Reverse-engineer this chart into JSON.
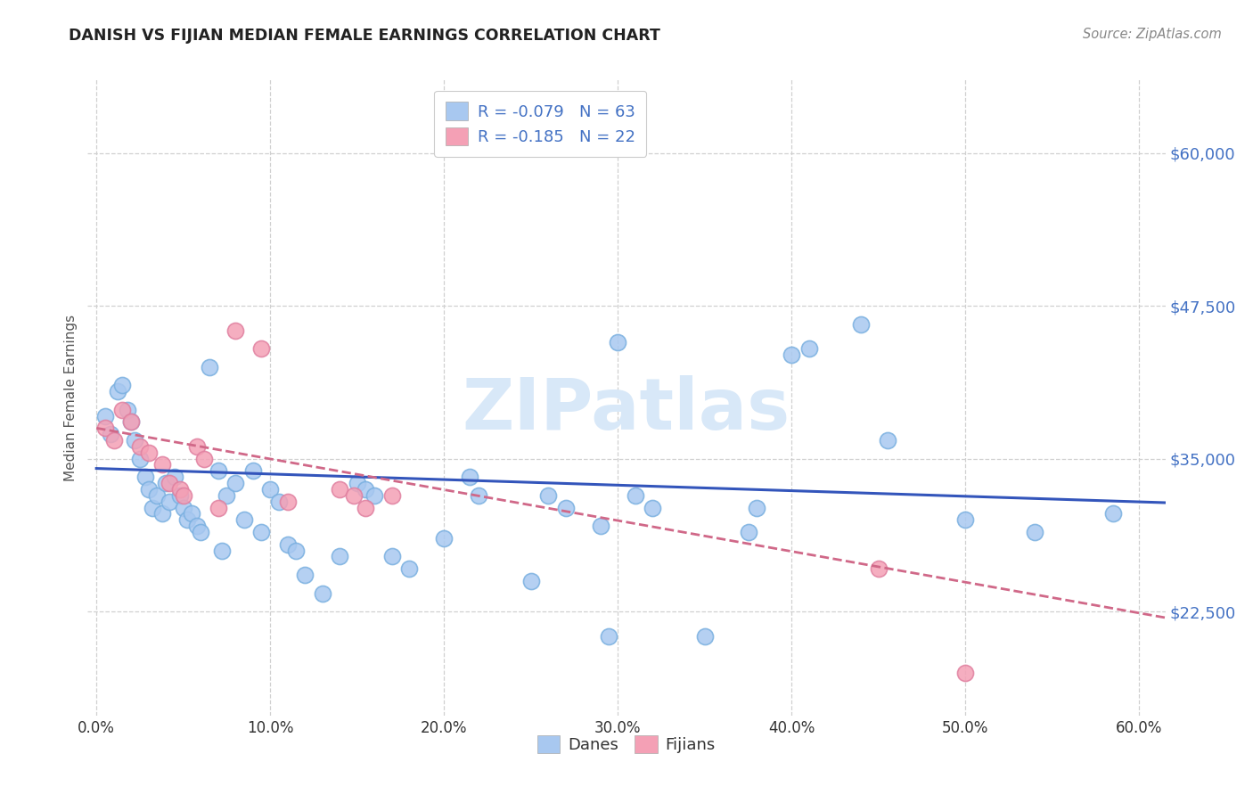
{
  "title": "DANISH VS FIJIAN MEDIAN FEMALE EARNINGS CORRELATION CHART",
  "source": "Source: ZipAtlas.com",
  "ylabel": "Median Female Earnings",
  "yticks_labels": [
    "$60,000",
    "$47,500",
    "$35,000",
    "$22,500"
  ],
  "yticks_values": [
    60000,
    47500,
    35000,
    22500
  ],
  "xticks_labels": [
    "0.0%",
    "10.0%",
    "20.0%",
    "30.0%",
    "40.0%",
    "50.0%",
    "60.0%"
  ],
  "xticks_values": [
    0.0,
    0.1,
    0.2,
    0.3,
    0.4,
    0.5,
    0.6
  ],
  "xlim": [
    -0.005,
    0.615
  ],
  "ylim": [
    14000,
    66000
  ],
  "R_danes": -0.079,
  "N_danes": 63,
  "R_fijians": -0.185,
  "N_fijians": 22,
  "danes_color": "#a8c8f0",
  "fijians_color": "#f4a0b5",
  "danes_edge_color": "#7ab0e0",
  "fijians_edge_color": "#e080a0",
  "danes_line_color": "#3355bb",
  "fijians_line_color": "#d06888",
  "background_color": "#ffffff",
  "grid_color": "#d0d0d0",
  "title_color": "#222222",
  "ylabel_color": "#555555",
  "ytick_color": "#4472c4",
  "xtick_color": "#333333",
  "watermark_text": "ZIPatlas",
  "watermark_color": "#d8e8f8",
  "legend_danes_label": "Danes",
  "legend_fijians_label": "Fijians",
  "danes_x": [
    0.005,
    0.008,
    0.012,
    0.015,
    0.018,
    0.02,
    0.022,
    0.025,
    0.028,
    0.03,
    0.032,
    0.035,
    0.038,
    0.04,
    0.042,
    0.045,
    0.048,
    0.05,
    0.052,
    0.055,
    0.058,
    0.06,
    0.065,
    0.07,
    0.072,
    0.075,
    0.08,
    0.085,
    0.09,
    0.095,
    0.1,
    0.105,
    0.11,
    0.115,
    0.12,
    0.13,
    0.14,
    0.15,
    0.155,
    0.16,
    0.17,
    0.18,
    0.2,
    0.215,
    0.22,
    0.25,
    0.26,
    0.27,
    0.29,
    0.295,
    0.3,
    0.31,
    0.32,
    0.35,
    0.375,
    0.38,
    0.4,
    0.41,
    0.44,
    0.455,
    0.5,
    0.54,
    0.585
  ],
  "danes_y": [
    38500,
    37000,
    40500,
    41000,
    39000,
    38000,
    36500,
    35000,
    33500,
    32500,
    31000,
    32000,
    30500,
    33000,
    31500,
    33500,
    32000,
    31000,
    30000,
    30500,
    29500,
    29000,
    42500,
    34000,
    27500,
    32000,
    33000,
    30000,
    34000,
    29000,
    32500,
    31500,
    28000,
    27500,
    25500,
    24000,
    27000,
    33000,
    32500,
    32000,
    27000,
    26000,
    28500,
    33500,
    32000,
    25000,
    32000,
    31000,
    29500,
    20500,
    44500,
    32000,
    31000,
    20500,
    29000,
    31000,
    43500,
    44000,
    46000,
    36500,
    30000,
    29000,
    30500
  ],
  "fijians_x": [
    0.005,
    0.01,
    0.015,
    0.02,
    0.025,
    0.03,
    0.038,
    0.042,
    0.048,
    0.05,
    0.058,
    0.062,
    0.07,
    0.08,
    0.095,
    0.11,
    0.14,
    0.148,
    0.155,
    0.17,
    0.45,
    0.5
  ],
  "fijians_y": [
    37500,
    36500,
    39000,
    38000,
    36000,
    35500,
    34500,
    33000,
    32500,
    32000,
    36000,
    35000,
    31000,
    45500,
    44000,
    31500,
    32500,
    32000,
    31000,
    32000,
    26000,
    17500
  ],
  "danes_trend_x": [
    0.0,
    0.615
  ],
  "danes_trend_y": [
    34200,
    31400
  ],
  "fijians_trend_x": [
    0.0,
    0.615
  ],
  "fijians_trend_y": [
    37500,
    22000
  ]
}
